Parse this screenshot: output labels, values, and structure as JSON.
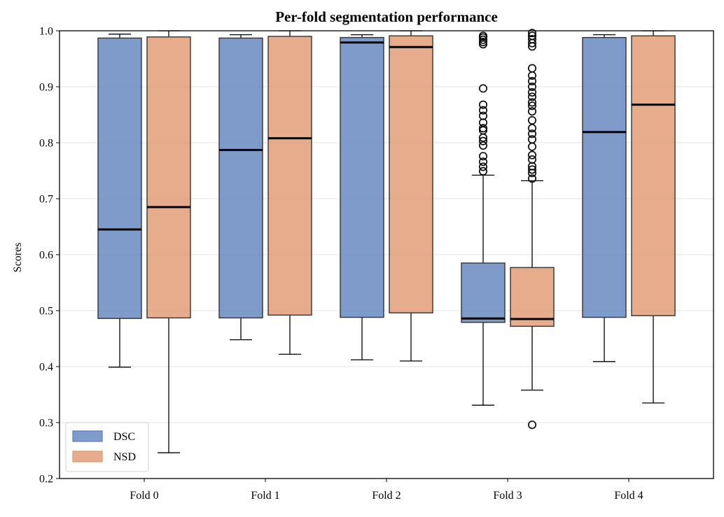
{
  "chart_data": {
    "type": "box",
    "title": "Per-fold segmentation performance",
    "xlabel": "",
    "ylabel": "Scores",
    "ylim": [
      0.2,
      1.0
    ],
    "yticks": [
      "0.2",
      "0.3",
      "0.4",
      "0.5",
      "0.6",
      "0.7",
      "0.8",
      "0.9",
      "1.0"
    ],
    "grid": "horizontal",
    "legend_position": "bottom-left",
    "categories": [
      "Fold 0",
      "Fold 1",
      "Fold 2",
      "Fold 3",
      "Fold 4"
    ],
    "series": [
      {
        "name": "DSC",
        "color": "#5b7fba",
        "boxes": [
          {
            "whisker_low": 0.399,
            "q1": 0.486,
            "median": 0.645,
            "q3": 0.987,
            "whisker_high": 0.994,
            "outliers": []
          },
          {
            "whisker_low": 0.448,
            "q1": 0.487,
            "median": 0.787,
            "q3": 0.987,
            "whisker_high": 0.993,
            "outliers": []
          },
          {
            "whisker_low": 0.412,
            "q1": 0.488,
            "median": 0.979,
            "q3": 0.988,
            "whisker_high": 0.993,
            "outliers": []
          },
          {
            "whisker_low": 0.331,
            "q1": 0.479,
            "median": 0.486,
            "q3": 0.585,
            "whisker_high": 0.742,
            "outliers": [
              0.749,
              0.757,
              0.766,
              0.776,
              0.795,
              0.803,
              0.809,
              0.822,
              0.826,
              0.836,
              0.848,
              0.858,
              0.868,
              0.897,
              0.976,
              0.98,
              0.984,
              0.988,
              0.991
            ]
          },
          {
            "whisker_low": 0.409,
            "q1": 0.488,
            "median": 0.819,
            "q3": 0.988,
            "whisker_high": 0.993,
            "outliers": []
          }
        ]
      },
      {
        "name": "NSD",
        "color": "#e0956a",
        "boxes": [
          {
            "whisker_low": 0.246,
            "q1": 0.487,
            "median": 0.685,
            "q3": 0.989,
            "whisker_high": 1.0,
            "outliers": []
          },
          {
            "whisker_low": 0.422,
            "q1": 0.492,
            "median": 0.808,
            "q3": 0.99,
            "whisker_high": 1.0,
            "outliers": []
          },
          {
            "whisker_low": 0.41,
            "q1": 0.496,
            "median": 0.971,
            "q3": 0.991,
            "whisker_high": 1.0,
            "outliers": []
          },
          {
            "whisker_low": 0.358,
            "q1": 0.472,
            "median": 0.485,
            "q3": 0.577,
            "whisker_high": 0.732,
            "outliers": [
              0.296,
              0.736,
              0.746,
              0.752,
              0.758,
              0.77,
              0.778,
              0.793,
              0.806,
              0.816,
              0.826,
              0.84,
              0.856,
              0.866,
              0.872,
              0.882,
              0.89,
              0.9,
              0.91,
              0.92,
              0.933,
              0.972,
              0.978,
              0.985,
              0.991,
              0.996
            ]
          },
          {
            "whisker_low": 0.335,
            "q1": 0.491,
            "median": 0.868,
            "q3": 0.991,
            "whisker_high": 1.0,
            "outliers": []
          }
        ]
      }
    ]
  }
}
